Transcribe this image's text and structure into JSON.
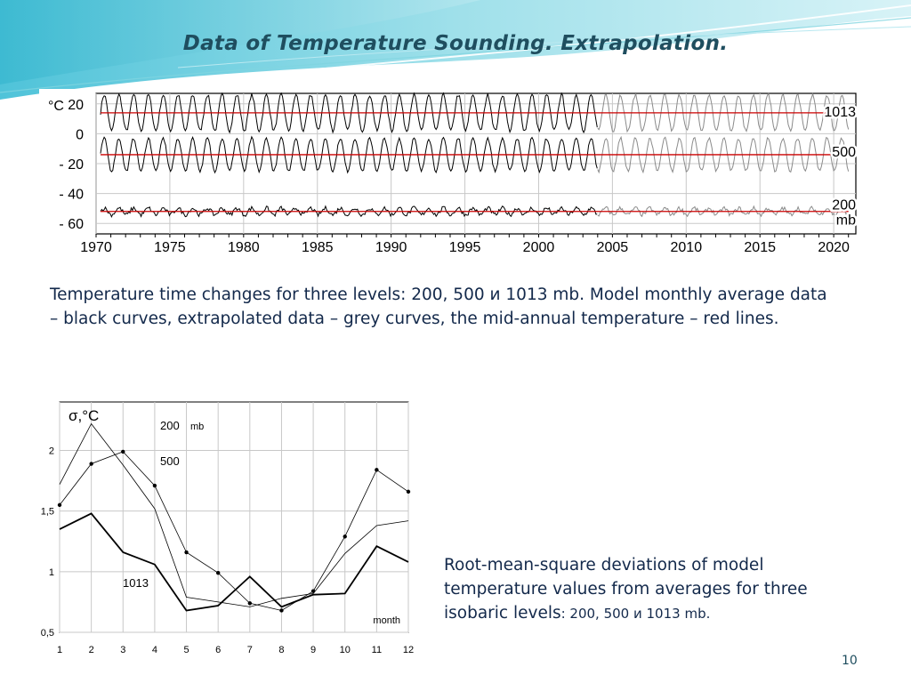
{
  "slide": {
    "title": "Data of Temperature Sounding. Extrapolation.",
    "caption_top": "Temperature time changes for three levels: 200, 500 и 1013 mb. Model monthly average data – black curves, extrapolated data – grey curves,  the mid-annual temperature – red lines.",
    "caption_bottom_main": "Root-mean-square deviations of model temperature values from averages for three isobaric levels",
    "caption_bottom_levels": ": 200, 500 и 1013 mb.",
    "page_number": "10"
  },
  "colors": {
    "title": "#1f4e5f",
    "text": "#13294b",
    "model": "#000000",
    "extrapolated": "#8a8a8a",
    "mean": "#cc0000",
    "wave": "#7fd4e0"
  },
  "chart_data": [
    {
      "type": "line",
      "ylabel": "°C",
      "y_ticks": [
        "20",
        "0",
        "- 20",
        "- 40",
        "- 60"
      ],
      "y_tick_values": [
        20,
        0,
        -20,
        -40,
        -60
      ],
      "ylim": [
        -67,
        27
      ],
      "x_ticks": [
        "1970",
        "1975",
        "1980",
        "1985",
        "1990",
        "1995",
        "2000",
        "2005",
        "2010",
        "2015",
        "2020"
      ],
      "x_tick_values": [
        1970,
        1975,
        1980,
        1985,
        1990,
        1995,
        2000,
        2005,
        2010,
        2015,
        2020
      ],
      "xlim": [
        1970,
        2021.5
      ],
      "model_range": [
        1970.3,
        2004
      ],
      "extrapolated_range": [
        2004,
        2021
      ],
      "grid": true,
      "unit_label": "mb",
      "series": [
        {
          "name": "1013",
          "mean": 14,
          "amplitude": 12,
          "noise": 1.2
        },
        {
          "name": "500",
          "mean": -14,
          "amplitude": 11,
          "noise": 1.0
        },
        {
          "name": "200",
          "mean": -52,
          "amplitude": 2.2,
          "noise": 1.4
        }
      ]
    },
    {
      "type": "line",
      "ylabel": "σ,°C",
      "xlabel": "month",
      "x": [
        1,
        2,
        3,
        4,
        5,
        6,
        7,
        8,
        9,
        10,
        11,
        12
      ],
      "ylim": [
        0.5,
        2.4
      ],
      "y_ticks": [
        "0,5",
        "1",
        "1,5",
        "2"
      ],
      "y_tick_values": [
        0.5,
        1,
        1.5,
        2
      ],
      "grid": true,
      "unit_label": "mb",
      "series": [
        {
          "name": "200",
          "values": [
            1.72,
            2.22,
            1.88,
            1.52,
            0.79,
            0.75,
            0.71,
            0.78,
            0.82,
            1.15,
            1.38,
            1.42
          ]
        },
        {
          "name": "500",
          "values": [
            1.55,
            1.89,
            1.99,
            1.71,
            1.16,
            0.99,
            0.74,
            0.68,
            0.84,
            1.29,
            1.84,
            1.66
          ],
          "markers": true
        },
        {
          "name": "1013",
          "values": [
            1.35,
            1.48,
            1.16,
            1.06,
            0.68,
            0.72,
            0.96,
            0.71,
            0.81,
            0.82,
            1.21,
            1.08
          ]
        }
      ]
    }
  ]
}
